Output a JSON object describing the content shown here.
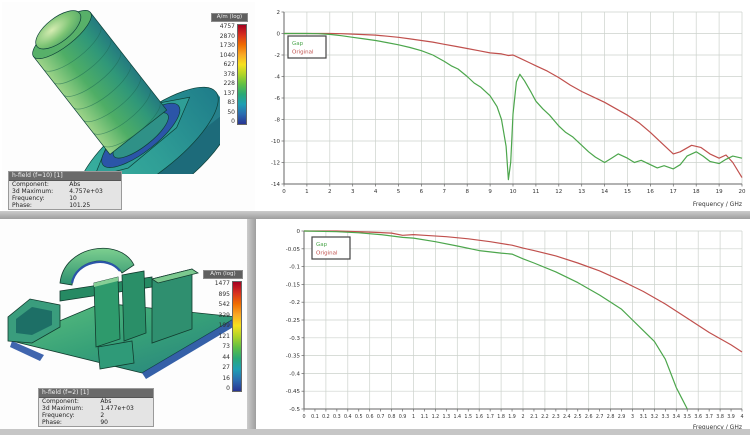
{
  "colors": {
    "curve_green": "#4ca64c",
    "curve_red": "#c0504d",
    "grid": "#ccd2cc",
    "axis": "#666666",
    "splitter_gray": "#9e9e9e"
  },
  "views": {
    "top": {
      "colorbar": {
        "title": "A/m (log)",
        "labels": [
          "4757",
          "2870",
          "1730",
          "1040",
          "627",
          "378",
          "228",
          "137",
          "83",
          "50",
          "0"
        ]
      },
      "info_box": {
        "header": "h-field (f=10) [1]",
        "rows": [
          {
            "label": "Component:",
            "value": "Abs"
          },
          {
            "label": "3d Maximum:",
            "value": "4.757e+03"
          },
          {
            "label": "Frequency:",
            "value": "10"
          },
          {
            "label": "Phase:",
            "value": "101.25"
          }
        ]
      }
    },
    "bottom": {
      "colorbar": {
        "title": "A/m (log)",
        "labels": [
          "1477",
          "895",
          "542",
          "329",
          "199",
          "121",
          "73",
          "44",
          "27",
          "16",
          "0"
        ]
      },
      "info_box": {
        "header": "h-field (f=2) [1]",
        "rows": [
          {
            "label": "Component:",
            "value": "Abs"
          },
          {
            "label": "3d Maximum:",
            "value": "1.477e+03"
          },
          {
            "label": "Frequency:",
            "value": "2"
          },
          {
            "label": "Phase:",
            "value": "90"
          }
        ]
      }
    }
  },
  "chart_data": [
    {
      "id": "top",
      "type": "line",
      "title": "",
      "xlabel": "Frequency / GHz",
      "ylabel": "",
      "xlim": [
        0,
        20
      ],
      "ylim": [
        -14,
        2
      ],
      "grid": true,
      "legend_position": "upper-left",
      "x_ticks": [
        "0",
        "1",
        "2",
        "3",
        "4",
        "5",
        "6",
        "7",
        "8",
        "9",
        "10",
        "11",
        "12",
        "13",
        "14",
        "15",
        "16",
        "17",
        "18",
        "19",
        "20"
      ],
      "y_ticks": [
        "2",
        "0",
        "-2",
        "-4",
        "-6",
        "-8",
        "-10",
        "-12",
        "-14"
      ],
      "legend": [
        {
          "name": "Gap",
          "color": "#4ca64c"
        },
        {
          "name": "Original",
          "color": "#c0504d"
        }
      ],
      "series": [
        {
          "name": "Original",
          "color": "#c0504d",
          "points": [
            [
              0,
              0
            ],
            [
              1,
              0
            ],
            [
              2,
              0
            ],
            [
              2.5,
              -0.02
            ],
            [
              3,
              -0.06
            ],
            [
              3.5,
              -0.1
            ],
            [
              4,
              -0.15
            ],
            [
              4.5,
              -0.25
            ],
            [
              5,
              -0.35
            ],
            [
              5.5,
              -0.5
            ],
            [
              6,
              -0.65
            ],
            [
              6.5,
              -0.8
            ],
            [
              7,
              -1.0
            ],
            [
              7.5,
              -1.2
            ],
            [
              8,
              -1.4
            ],
            [
              8.5,
              -1.6
            ],
            [
              9,
              -1.8
            ],
            [
              9.5,
              -1.9
            ],
            [
              9.8,
              -2.05
            ],
            [
              10,
              -2.0
            ],
            [
              10.3,
              -2.3
            ],
            [
              10.7,
              -2.7
            ],
            [
              11,
              -3.0
            ],
            [
              11.5,
              -3.5
            ],
            [
              12,
              -4.1
            ],
            [
              12.5,
              -4.8
            ],
            [
              13,
              -5.4
            ],
            [
              13.5,
              -5.9
            ],
            [
              14,
              -6.4
            ],
            [
              14.5,
              -7.0
            ],
            [
              15,
              -7.6
            ],
            [
              15.5,
              -8.3
            ],
            [
              16,
              -9.2
            ],
            [
              16.5,
              -10.2
            ],
            [
              17,
              -11.2
            ],
            [
              17.3,
              -11.0
            ],
            [
              17.8,
              -10.4
            ],
            [
              18.2,
              -10.6
            ],
            [
              18.6,
              -11.2
            ],
            [
              19,
              -11.6
            ],
            [
              19.3,
              -11.3
            ],
            [
              19.6,
              -12.0
            ],
            [
              20,
              -13.4
            ]
          ]
        },
        {
          "name": "Gap",
          "color": "#4ca64c",
          "points": [
            [
              0,
              0
            ],
            [
              1,
              0
            ],
            [
              1.5,
              -0.02
            ],
            [
              2,
              -0.08
            ],
            [
              2.5,
              -0.2
            ],
            [
              3,
              -0.35
            ],
            [
              3.5,
              -0.5
            ],
            [
              4,
              -0.65
            ],
            [
              4.5,
              -0.85
            ],
            [
              5,
              -1.05
            ],
            [
              5.5,
              -1.3
            ],
            [
              6,
              -1.6
            ],
            [
              6.5,
              -2.0
            ],
            [
              7,
              -2.6
            ],
            [
              7.3,
              -3.0
            ],
            [
              7.6,
              -3.3
            ],
            [
              8,
              -4.0
            ],
            [
              8.3,
              -4.6
            ],
            [
              8.6,
              -5.0
            ],
            [
              9,
              -5.8
            ],
            [
              9.3,
              -6.8
            ],
            [
              9.5,
              -8.0
            ],
            [
              9.7,
              -10.5
            ],
            [
              9.8,
              -13.6
            ],
            [
              9.9,
              -12.0
            ],
            [
              10.0,
              -7.5
            ],
            [
              10.15,
              -4.5
            ],
            [
              10.3,
              -3.8
            ],
            [
              10.5,
              -4.4
            ],
            [
              10.8,
              -5.5
            ],
            [
              11,
              -6.3
            ],
            [
              11.3,
              -7.0
            ],
            [
              11.6,
              -7.6
            ],
            [
              12,
              -8.6
            ],
            [
              12.3,
              -9.2
            ],
            [
              12.6,
              -9.6
            ],
            [
              13,
              -10.4
            ],
            [
              13.3,
              -11.0
            ],
            [
              13.6,
              -11.5
            ],
            [
              14,
              -12.0
            ],
            [
              14.3,
              -11.6
            ],
            [
              14.6,
              -11.2
            ],
            [
              15,
              -11.6
            ],
            [
              15.3,
              -12.0
            ],
            [
              15.6,
              -11.8
            ],
            [
              16,
              -12.2
            ],
            [
              16.3,
              -12.5
            ],
            [
              16.6,
              -12.3
            ],
            [
              17,
              -12.6
            ],
            [
              17.3,
              -12.2
            ],
            [
              17.6,
              -11.4
            ],
            [
              18,
              -11.0
            ],
            [
              18.3,
              -11.4
            ],
            [
              18.6,
              -11.9
            ],
            [
              19,
              -12.1
            ],
            [
              19.3,
              -11.7
            ],
            [
              19.6,
              -11.4
            ],
            [
              20,
              -11.6
            ]
          ]
        }
      ]
    },
    {
      "id": "bottom",
      "type": "line",
      "title": "",
      "xlabel": "Frequency / GHz",
      "ylabel": "",
      "xlim": [
        0,
        4
      ],
      "ylim": [
        -0.5,
        0
      ],
      "grid": true,
      "legend_position": "upper-left",
      "x_ticks": [
        "0",
        "0.1",
        "0.2",
        "0.3",
        "0.4",
        "0.5",
        "0.6",
        "0.7",
        "0.8",
        "0.9",
        "1",
        "1.1",
        "1.2",
        "1.3",
        "1.4",
        "1.5",
        "1.6",
        "1.7",
        "1.8",
        "1.9",
        "2",
        "2.1",
        "2.2",
        "2.3",
        "2.4",
        "2.5",
        "2.6",
        "2.7",
        "2.8",
        "2.9",
        "3",
        "3.1",
        "3.2",
        "3.3",
        "3.4",
        "3.5",
        "3.6",
        "3.7",
        "3.8",
        "3.9",
        "4"
      ],
      "y_ticks": [
        "0",
        "-0.05",
        "-0.1",
        "-0.15",
        "-0.2",
        "-0.25",
        "-0.3",
        "-0.35",
        "-0.4",
        "-0.45",
        "-0.5"
      ],
      "legend": [
        {
          "name": "Gap",
          "color": "#4ca64c"
        },
        {
          "name": "Original",
          "color": "#c0504d"
        }
      ],
      "series": [
        {
          "name": "Original",
          "color": "#c0504d",
          "points": [
            [
              0,
              0
            ],
            [
              0.3,
              0
            ],
            [
              0.6,
              -0.003
            ],
            [
              0.8,
              -0.006
            ],
            [
              0.9,
              -0.012
            ],
            [
              1.0,
              -0.01
            ],
            [
              1.1,
              -0.012
            ],
            [
              1.3,
              -0.016
            ],
            [
              1.5,
              -0.022
            ],
            [
              1.7,
              -0.03
            ],
            [
              1.9,
              -0.04
            ],
            [
              2.0,
              -0.048
            ],
            [
              2.1,
              -0.055
            ],
            [
              2.3,
              -0.07
            ],
            [
              2.5,
              -0.09
            ],
            [
              2.7,
              -0.112
            ],
            [
              2.9,
              -0.14
            ],
            [
              3.1,
              -0.17
            ],
            [
              3.3,
              -0.205
            ],
            [
              3.5,
              -0.245
            ],
            [
              3.7,
              -0.285
            ],
            [
              3.9,
              -0.32
            ],
            [
              4.0,
              -0.34
            ]
          ]
        },
        {
          "name": "Gap",
          "color": "#4ca64c",
          "points": [
            [
              0,
              0
            ],
            [
              0.3,
              -0.002
            ],
            [
              0.5,
              -0.005
            ],
            [
              0.7,
              -0.01
            ],
            [
              0.9,
              -0.018
            ],
            [
              1.0,
              -0.02
            ],
            [
              1.2,
              -0.03
            ],
            [
              1.4,
              -0.042
            ],
            [
              1.6,
              -0.055
            ],
            [
              1.8,
              -0.062
            ],
            [
              1.9,
              -0.065
            ],
            [
              2.0,
              -0.078
            ],
            [
              2.1,
              -0.09
            ],
            [
              2.3,
              -0.115
            ],
            [
              2.5,
              -0.145
            ],
            [
              2.7,
              -0.18
            ],
            [
              2.9,
              -0.22
            ],
            [
              3.0,
              -0.25
            ],
            [
              3.1,
              -0.28
            ],
            [
              3.2,
              -0.31
            ],
            [
              3.3,
              -0.36
            ],
            [
              3.35,
              -0.4
            ],
            [
              3.4,
              -0.44
            ],
            [
              3.45,
              -0.47
            ],
            [
              3.5,
              -0.5
            ]
          ]
        }
      ]
    }
  ]
}
